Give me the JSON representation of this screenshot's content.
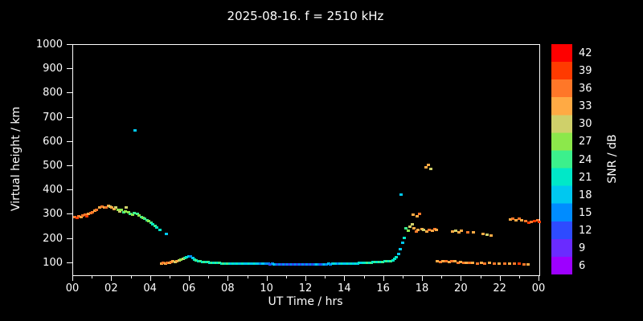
{
  "title": "2025-08-16. f = 2510 kHz",
  "axes": {
    "ylabel": "Virtual height / km",
    "xlabel": "UT Time / hrs",
    "ylim": [
      50,
      1000
    ],
    "xlim_hours": [
      0,
      24
    ],
    "y_ticks": [
      100,
      200,
      300,
      400,
      500,
      600,
      700,
      800,
      900,
      1000
    ],
    "x_tick_labels": [
      "00",
      "02",
      "04",
      "06",
      "08",
      "10",
      "12",
      "14",
      "16",
      "18",
      "20",
      "22",
      "00"
    ],
    "x_tick_hours": [
      0,
      2,
      4,
      6,
      8,
      10,
      12,
      14,
      16,
      18,
      20,
      22,
      24
    ],
    "x_minor_tick_hours": [
      1,
      3,
      5,
      7,
      9,
      11,
      13,
      15,
      17,
      19,
      21,
      23
    ]
  },
  "colorbar": {
    "label": "SNR / dB",
    "tick_values": [
      42,
      39,
      36,
      33,
      30,
      27,
      24,
      21,
      18,
      15,
      12,
      9,
      6
    ],
    "value_range": [
      4.5,
      43.5
    ],
    "stops": [
      {
        "snr": 6,
        "color": "#9d00ff"
      },
      {
        "snr": 9,
        "color": "#6a2bff"
      },
      {
        "snr": 12,
        "color": "#2e4bff"
      },
      {
        "snr": 15,
        "color": "#008cff"
      },
      {
        "snr": 18,
        "color": "#00c8f0"
      },
      {
        "snr": 21,
        "color": "#00e8c8"
      },
      {
        "snr": 24,
        "color": "#3cf08c"
      },
      {
        "snr": 27,
        "color": "#8ce84b"
      },
      {
        "snr": 30,
        "color": "#cfd06a"
      },
      {
        "snr": 33,
        "color": "#ffaa44"
      },
      {
        "snr": 36,
        "color": "#ff7728"
      },
      {
        "snr": 39,
        "color": "#ff3a00"
      },
      {
        "snr": 42,
        "color": "#fe0000"
      }
    ]
  },
  "chart_data": {
    "type": "scatter",
    "title": "2025-08-16. f = 2510 kHz",
    "xlabel": "UT Time / hrs",
    "ylabel": "Virtual height / km",
    "xlim": [
      0,
      24
    ],
    "ylim": [
      50,
      1000
    ],
    "legend": "color encodes SNR / dB (6-42, rainbow)",
    "point_format": [
      "ut_hours",
      "virtual_height_km",
      "snr_db"
    ],
    "points": [
      [
        0.1,
        290,
        36
      ],
      [
        0.2,
        288,
        39
      ],
      [
        0.3,
        295,
        36
      ],
      [
        0.4,
        292,
        33
      ],
      [
        0.5,
        298,
        36
      ],
      [
        0.6,
        300,
        36
      ],
      [
        0.7,
        296,
        39
      ],
      [
        0.8,
        305,
        33
      ],
      [
        0.9,
        308,
        36
      ],
      [
        1.0,
        312,
        36
      ],
      [
        1.1,
        318,
        33
      ],
      [
        1.2,
        322,
        36
      ],
      [
        1.35,
        330,
        33
      ],
      [
        1.5,
        335,
        36
      ],
      [
        1.6,
        330,
        33
      ],
      [
        1.7,
        332,
        36
      ],
      [
        1.8,
        338,
        33
      ],
      [
        1.9,
        334,
        30
      ],
      [
        2.0,
        330,
        33
      ],
      [
        2.1,
        326,
        33
      ],
      [
        2.2,
        330,
        30
      ],
      [
        2.3,
        322,
        27
      ],
      [
        2.4,
        316,
        30
      ],
      [
        2.5,
        320,
        27
      ],
      [
        2.6,
        312,
        24
      ],
      [
        2.7,
        316,
        27
      ],
      [
        2.75,
        330,
        30
      ],
      [
        2.85,
        310,
        27
      ],
      [
        2.95,
        305,
        24
      ],
      [
        3.05,
        300,
        27
      ],
      [
        3.15,
        308,
        24
      ],
      [
        3.2,
        650,
        18
      ],
      [
        3.3,
        305,
        24
      ],
      [
        3.4,
        298,
        27
      ],
      [
        3.5,
        292,
        24
      ],
      [
        3.6,
        288,
        27
      ],
      [
        3.7,
        284,
        24
      ],
      [
        3.8,
        280,
        24
      ],
      [
        3.9,
        274,
        27
      ],
      [
        4.0,
        268,
        24
      ],
      [
        4.1,
        262,
        21
      ],
      [
        4.2,
        256,
        24
      ],
      [
        4.3,
        248,
        21
      ],
      [
        4.45,
        238,
        21
      ],
      [
        4.8,
        222,
        18
      ],
      [
        4.55,
        100,
        33
      ],
      [
        4.65,
        104,
        36
      ],
      [
        4.75,
        100,
        33
      ],
      [
        4.85,
        104,
        36
      ],
      [
        4.95,
        102,
        33
      ],
      [
        5.05,
        106,
        36
      ],
      [
        5.15,
        108,
        33
      ],
      [
        5.25,
        106,
        30
      ],
      [
        5.35,
        110,
        33
      ],
      [
        5.45,
        112,
        30
      ],
      [
        5.55,
        116,
        27
      ],
      [
        5.65,
        118,
        30
      ],
      [
        5.75,
        122,
        24
      ],
      [
        5.85,
        126,
        21
      ],
      [
        5.95,
        130,
        18
      ],
      [
        6.05,
        128,
        15
      ],
      [
        6.15,
        122,
        18
      ],
      [
        6.25,
        116,
        21
      ],
      [
        6.35,
        112,
        24
      ],
      [
        6.45,
        110,
        21
      ],
      [
        6.55,
        108,
        24
      ],
      [
        6.65,
        107,
        21
      ],
      [
        6.75,
        106,
        24
      ],
      [
        6.85,
        105,
        21
      ],
      [
        6.95,
        105,
        24
      ],
      [
        7.05,
        104,
        21
      ],
      [
        7.15,
        104,
        24
      ],
      [
        7.25,
        103,
        21
      ],
      [
        7.35,
        103,
        24
      ],
      [
        7.45,
        102,
        21
      ],
      [
        7.55,
        102,
        24
      ],
      [
        7.65,
        101,
        21
      ],
      [
        7.75,
        101,
        24
      ],
      [
        7.85,
        100,
        21
      ],
      [
        7.95,
        100,
        24
      ],
      [
        8.05,
        100,
        21
      ],
      [
        8.15,
        100,
        18
      ],
      [
        8.25,
        99,
        21
      ],
      [
        8.35,
        100,
        18
      ],
      [
        8.45,
        100,
        21
      ],
      [
        8.55,
        99,
        18
      ],
      [
        8.65,
        100,
        18
      ],
      [
        8.75,
        99,
        21
      ],
      [
        8.85,
        100,
        18
      ],
      [
        8.95,
        99,
        18
      ],
      [
        9.05,
        100,
        21
      ],
      [
        9.15,
        99,
        18
      ],
      [
        9.25,
        98,
        18
      ],
      [
        9.35,
        99,
        21
      ],
      [
        9.45,
        98,
        18
      ],
      [
        9.55,
        99,
        18
      ],
      [
        9.65,
        98,
        15
      ],
      [
        9.75,
        99,
        18
      ],
      [
        9.85,
        98,
        18
      ],
      [
        9.95,
        98,
        15
      ],
      [
        10.05,
        98,
        15
      ],
      [
        10.15,
        97,
        12
      ],
      [
        10.25,
        98,
        15
      ],
      [
        10.35,
        97,
        18
      ],
      [
        10.45,
        96,
        15
      ],
      [
        10.55,
        97,
        12
      ],
      [
        10.65,
        96,
        15
      ],
      [
        10.75,
        97,
        12
      ],
      [
        10.85,
        96,
        15
      ],
      [
        10.95,
        96,
        12
      ],
      [
        11.05,
        96,
        15
      ],
      [
        11.15,
        95,
        12
      ],
      [
        11.25,
        96,
        15
      ],
      [
        11.35,
        95,
        12
      ],
      [
        11.45,
        96,
        15
      ],
      [
        11.55,
        95,
        12
      ],
      [
        11.65,
        95,
        15
      ],
      [
        11.75,
        96,
        12
      ],
      [
        11.85,
        95,
        15
      ],
      [
        11.95,
        95,
        12
      ],
      [
        12.05,
        95,
        15
      ],
      [
        12.15,
        96,
        12
      ],
      [
        12.25,
        95,
        15
      ],
      [
        12.35,
        96,
        12
      ],
      [
        12.45,
        95,
        15
      ],
      [
        12.55,
        96,
        18
      ],
      [
        12.65,
        96,
        15
      ],
      [
        12.75,
        97,
        12
      ],
      [
        12.85,
        96,
        15
      ],
      [
        12.95,
        97,
        18
      ],
      [
        13.05,
        97,
        15
      ],
      [
        13.15,
        98,
        18
      ],
      [
        13.25,
        97,
        15
      ],
      [
        13.35,
        98,
        18
      ],
      [
        13.45,
        98,
        21
      ],
      [
        13.55,
        99,
        18
      ],
      [
        13.65,
        98,
        15
      ],
      [
        13.75,
        99,
        18
      ],
      [
        13.85,
        99,
        21
      ],
      [
        13.95,
        100,
        18
      ],
      [
        14.05,
        99,
        18
      ],
      [
        14.15,
        100,
        21
      ],
      [
        14.25,
        100,
        18
      ],
      [
        14.35,
        101,
        21
      ],
      [
        14.45,
        100,
        18
      ],
      [
        14.55,
        101,
        21
      ],
      [
        14.65,
        101,
        18
      ],
      [
        14.75,
        102,
        21
      ],
      [
        14.85,
        102,
        18
      ],
      [
        14.95,
        102,
        21
      ],
      [
        15.05,
        103,
        21
      ],
      [
        15.15,
        103,
        24
      ],
      [
        15.25,
        104,
        21
      ],
      [
        15.35,
        104,
        24
      ],
      [
        15.45,
        105,
        21
      ],
      [
        15.55,
        105,
        24
      ],
      [
        15.65,
        106,
        21
      ],
      [
        15.75,
        106,
        24
      ],
      [
        15.85,
        107,
        21
      ],
      [
        15.95,
        107,
        24
      ],
      [
        16.05,
        108,
        21
      ],
      [
        16.15,
        109,
        24
      ],
      [
        16.25,
        110,
        21
      ],
      [
        16.35,
        111,
        24
      ],
      [
        16.45,
        113,
        21
      ],
      [
        16.55,
        118,
        21
      ],
      [
        16.65,
        126,
        21
      ],
      [
        16.75,
        140,
        18
      ],
      [
        16.85,
        160,
        18
      ],
      [
        16.9,
        385,
        18
      ],
      [
        16.95,
        185,
        18
      ],
      [
        17.05,
        205,
        21
      ],
      [
        17.15,
        245,
        24
      ],
      [
        17.25,
        235,
        27
      ],
      [
        17.35,
        252,
        30
      ],
      [
        17.45,
        262,
        30
      ],
      [
        17.5,
        300,
        33
      ],
      [
        17.55,
        245,
        33
      ],
      [
        17.65,
        232,
        36
      ],
      [
        17.7,
        295,
        33
      ],
      [
        17.75,
        238,
        33
      ],
      [
        17.85,
        305,
        36
      ],
      [
        17.95,
        242,
        33
      ],
      [
        18.05,
        238,
        30
      ],
      [
        18.15,
        498,
        33
      ],
      [
        18.2,
        232,
        33
      ],
      [
        18.3,
        508,
        33
      ],
      [
        18.35,
        240,
        36
      ],
      [
        18.4,
        490,
        30
      ],
      [
        18.5,
        235,
        33
      ],
      [
        18.6,
        242,
        36
      ],
      [
        18.7,
        238,
        33
      ],
      [
        18.75,
        108,
        33
      ],
      [
        18.9,
        106,
        36
      ],
      [
        19.05,
        110,
        33
      ],
      [
        19.2,
        108,
        36
      ],
      [
        19.35,
        106,
        33
      ],
      [
        19.5,
        110,
        36
      ],
      [
        19.65,
        108,
        33
      ],
      [
        19.8,
        104,
        36
      ],
      [
        19.95,
        106,
        33
      ],
      [
        20.1,
        104,
        36
      ],
      [
        20.25,
        102,
        33
      ],
      [
        20.4,
        104,
        36
      ],
      [
        20.55,
        102,
        33
      ],
      [
        20.8,
        100,
        36
      ],
      [
        21.0,
        102,
        33
      ],
      [
        21.2,
        100,
        36
      ],
      [
        21.45,
        102,
        33
      ],
      [
        21.7,
        100,
        36
      ],
      [
        21.95,
        98,
        33
      ],
      [
        22.2,
        100,
        36
      ],
      [
        22.45,
        98,
        33
      ],
      [
        22.7,
        100,
        36
      ],
      [
        22.95,
        98,
        39
      ],
      [
        23.2,
        96,
        36
      ],
      [
        23.4,
        95,
        33
      ],
      [
        19.55,
        232,
        33
      ],
      [
        19.7,
        236,
        30
      ],
      [
        19.85,
        230,
        33
      ],
      [
        20.0,
        234,
        33
      ],
      [
        20.3,
        228,
        36
      ],
      [
        20.6,
        230,
        33
      ],
      [
        21.1,
        222,
        33
      ],
      [
        21.3,
        218,
        30
      ],
      [
        21.5,
        215,
        33
      ],
      [
        22.5,
        282,
        33
      ],
      [
        22.65,
        286,
        36
      ],
      [
        22.8,
        280,
        33
      ],
      [
        22.95,
        284,
        36
      ],
      [
        23.1,
        278,
        33
      ],
      [
        23.3,
        274,
        36
      ],
      [
        23.45,
        270,
        39
      ],
      [
        23.6,
        272,
        36
      ],
      [
        23.75,
        275,
        39
      ],
      [
        23.9,
        278,
        36
      ],
      [
        23.98,
        272,
        39
      ]
    ]
  }
}
